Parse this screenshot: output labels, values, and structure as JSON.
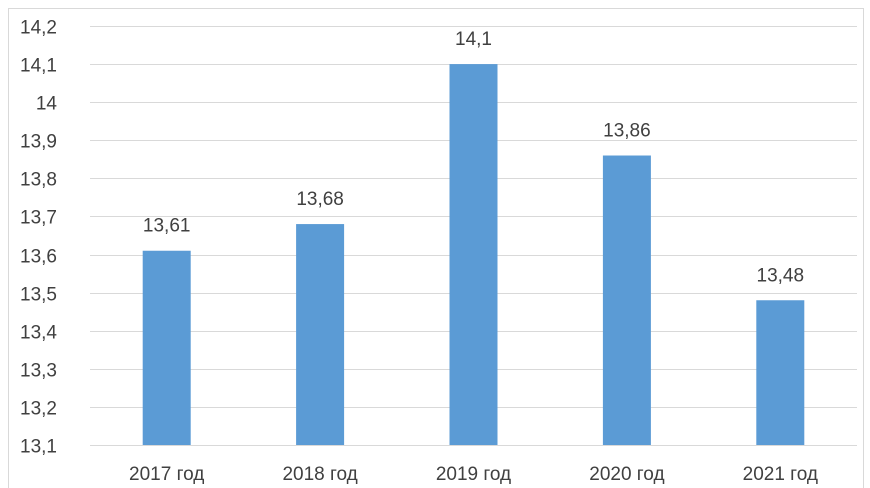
{
  "chart_data": {
    "type": "bar",
    "categories": [
      "2017 год",
      "2018 год",
      "2019 год",
      "2020 год",
      "2021 год"
    ],
    "values": [
      13.61,
      13.68,
      14.1,
      13.86,
      13.48
    ],
    "data_labels": [
      "13,61",
      "13,68",
      "14,1",
      "13,86",
      "13,48"
    ],
    "ylim": [
      13.1,
      14.2
    ],
    "y_ticks": [
      14.2,
      14.1,
      14,
      13.9,
      13.8,
      13.7,
      13.6,
      13.5,
      13.4,
      13.3,
      13.2,
      13.1
    ],
    "y_tick_labels": [
      "14,2",
      "14,1",
      "14",
      "13,9",
      "13,8",
      "13,7",
      "13,6",
      "13,5",
      "13,4",
      "13,3",
      "13,2",
      "13,1"
    ],
    "grid": true,
    "legend": "none",
    "colors": {
      "bar": "#5B9BD5",
      "grid": "#D9D9D9",
      "text": "#404040",
      "border": "#D9D9D9"
    }
  }
}
